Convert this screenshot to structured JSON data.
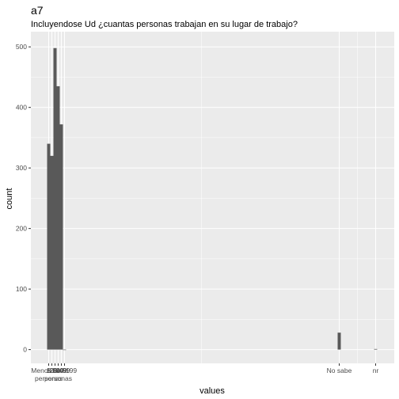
{
  "chart_data": {
    "type": "bar",
    "title": "a7",
    "subtitle": "Incluyendose Ud ¿cuantas personas trabajan en su lugar de trabajo?",
    "xlabel": "values",
    "ylabel": "count",
    "ylim": [
      0,
      520
    ],
    "yticks": [
      0,
      100,
      200,
      300,
      400,
      500
    ],
    "grid": true,
    "bar_color": "#595959",
    "panel_color": "#ebebeb",
    "grid_color": "#ffffff",
    "categories": [
      {
        "label": "Menos de 5 personas",
        "value": 340
      },
      {
        "label": "5-9",
        "value": 320
      },
      {
        "label": "10-19",
        "value": 498
      },
      {
        "label": "20-49",
        "value": 435
      },
      {
        "label": "50-99",
        "value": 372
      },
      {
        "label": "100-199",
        "value": 0
      },
      {
        "label": "No sabe",
        "value": 28
      },
      {
        "label": "nr",
        "value": 1
      }
    ],
    "x_tick_labels": [
      {
        "label": "Menos de 5 personas",
        "lines": [
          "Menos de 5",
          "personas"
        ]
      },
      {
        "label": "5-9",
        "lines": [
          "5-9"
        ]
      },
      {
        "label": "10-19",
        "lines": [
          "10-19"
        ]
      },
      {
        "label": "20-49",
        "lines": [
          "20-49",
          "personas"
        ]
      },
      {
        "label": "50-99",
        "lines": [
          "50-99"
        ]
      },
      {
        "label": "100-199",
        "lines": [
          "100-199"
        ]
      },
      {
        "label": "No sabe",
        "lines": [
          "No sabe"
        ]
      },
      {
        "label": "nr",
        "lines": [
          "nr"
        ]
      }
    ]
  }
}
